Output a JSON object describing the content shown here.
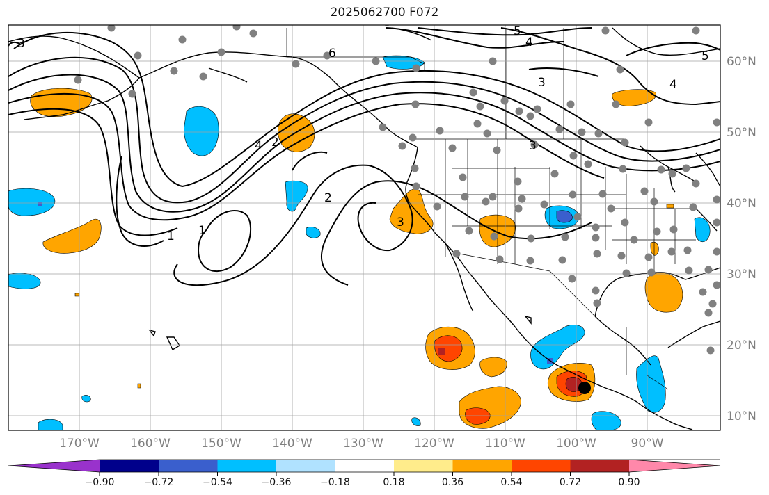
{
  "title": "2025062700 F072",
  "map": {
    "lon_ticks": [
      "170°W",
      "160°W",
      "150°W",
      "140°W",
      "130°W",
      "120°W",
      "110°W",
      "100°W",
      "90°W"
    ],
    "lat_ticks": [
      "60°N",
      "50°N",
      "40°N",
      "30°N",
      "20°N",
      "10°N"
    ],
    "contour_labels": [
      "1",
      "1",
      "2",
      "2",
      "3",
      "3",
      "3",
      "3",
      "4",
      "4",
      "4",
      "5",
      "5",
      "6"
    ]
  },
  "colorbar": {
    "ticks": [
      "−0.90",
      "−0.72",
      "−0.54",
      "−0.36",
      "−0.18",
      "0.18",
      "0.36",
      "0.54",
      "0.72",
      "0.90"
    ],
    "colors": [
      "#9932cc",
      "#00008b",
      "#3a5fcd",
      "#00bfff",
      "#b0e2ff",
      "#ffffff",
      "#ffec8b",
      "#ffa500",
      "#ff4500",
      "#b22222",
      "#ff88aa"
    ]
  },
  "colors": {
    "contour": "#000000",
    "station": "#808080",
    "grid": "#a0a0a0"
  }
}
